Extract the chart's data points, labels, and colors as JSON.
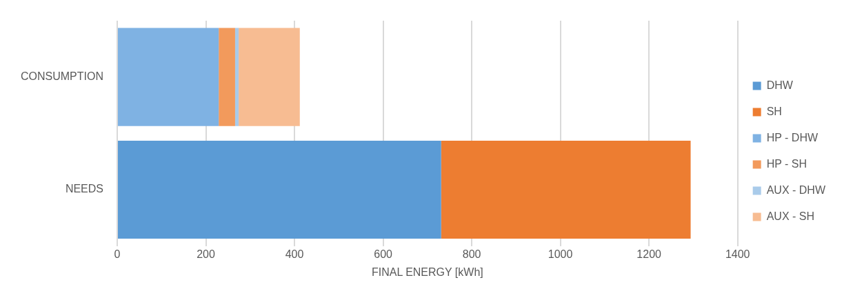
{
  "chart_data": {
    "type": "bar",
    "orientation": "horizontal",
    "stacked": true,
    "xlabel": "FINAL ENERGY [kWh]",
    "categories": [
      "CONSUMPTION",
      "NEEDS"
    ],
    "series": [
      {
        "name": "DHW",
        "color": "#5b9bd5",
        "values": [
          null,
          731
        ]
      },
      {
        "name": "SH",
        "color": "#ed7d31",
        "values": [
          null,
          563
        ]
      },
      {
        "name": "HP - DHW",
        "color": "#7fb2e3",
        "values": [
          229,
          null
        ]
      },
      {
        "name": "HP - SH",
        "color": "#f29a5c",
        "values": [
          37,
          null
        ]
      },
      {
        "name": "AUX - DHW",
        "color": "#a9cbea",
        "values": [
          8,
          null
        ]
      },
      {
        "name": "AUX - SH",
        "color": "#f7bc92",
        "values": [
          138,
          null
        ]
      }
    ],
    "xlim": [
      0,
      1400
    ],
    "xticks": [
      0,
      200,
      400,
      600,
      800,
      1000,
      1200,
      1400
    ],
    "grid": "x",
    "legend": "right"
  }
}
